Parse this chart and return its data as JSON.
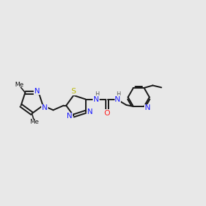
{
  "bg_color": "#e8e8e8",
  "bond_color": "#1a1a1a",
  "N_color": "#1a1aff",
  "O_color": "#ff1a1a",
  "S_color": "#b8b800",
  "H_color": "#555555",
  "figsize": [
    3.0,
    3.0
  ],
  "dpi": 100,
  "xlim": [
    0,
    10
  ],
  "ylim": [
    2,
    8
  ]
}
